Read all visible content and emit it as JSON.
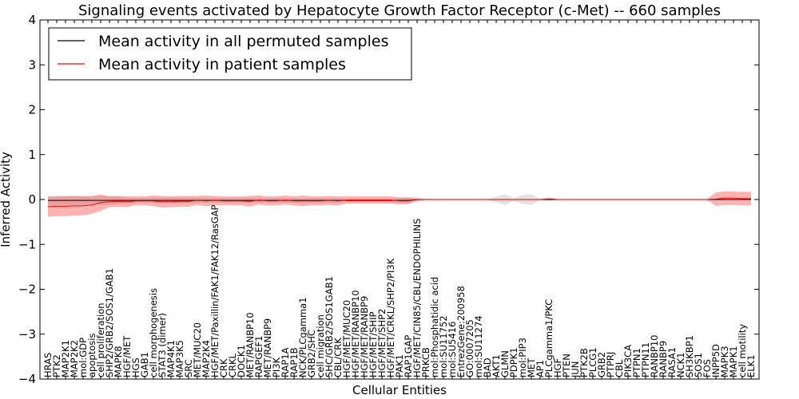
{
  "chart_data": {
    "type": "line",
    "title": "Signaling events activated by Hepatocyte Growth Factor Receptor (c-Met) -- 660 samples",
    "xlabel": "Cellular Entities",
    "ylabel": "Inferred Activity",
    "ylim": [
      -4,
      4
    ],
    "yticks": [
      -4,
      -3,
      -2,
      -1,
      0,
      1,
      2,
      3,
      4
    ],
    "grid": false,
    "legend_position": "top-left",
    "categories": [
      "HRAS",
      "PTK2",
      "MAP2K1",
      "MAP2K2",
      "mol:GDP",
      "apoptosis",
      "cell proliferation",
      "SHP2/GRB2/SOS1/GAB1",
      "MAPK8",
      "HGF/MET",
      "HGS",
      "GAB1",
      "cell morphogenesis",
      "STAT3 (dimer)",
      "MAP4K1",
      "MAP3K5",
      "SRC",
      "MET/MUC20",
      "MAP2K4",
      "HGF/MET/Paxillin/FAK1/FAK12/RasGAP",
      "CRK",
      "CRKL",
      "DOCK1",
      "MET/RANBP10",
      "RAPGEF1",
      "MET/RANBP9",
      "PI3K",
      "RAP1A",
      "RAP1B",
      "NCK/PLCgamma1",
      "GRB2/SHC",
      "cell migration",
      "SHC/GRB2/SOS1GAB1",
      "CBL/CRK",
      "HGF/MET/MUC20",
      "HGF/MET/RANBP10",
      "HGF/MET/RANBP9",
      "HGF/MET/SHIP",
      "HGF/MET/SHP2",
      "HGF/MET/CRKL/SHP2/PI3K",
      "PAK1",
      "RAP1GAP",
      "HGF/MET/CIN85/CBL/ENDOPHILINS",
      "PRKCB",
      "mol:Phosphatidic acid",
      "mol:SU11752",
      "mol:SU5416",
      "EntrezGene:200958",
      "GO:0007205",
      "mol:SU11274",
      "BAD",
      "AKT1",
      "GLMN",
      "PDPK1",
      "mol:PIP3",
      "MET",
      "AP1",
      "PLCgamma1/PKC",
      "HGF",
      "PTEN",
      "JUN",
      "PTK2B",
      "PLCG1",
      "GRB2",
      "PTPRJ",
      "CBL",
      "PIK3CA",
      "PTPN1",
      "PTPN11",
      "RANBP10",
      "RANBP9",
      "RASA1",
      "NCK1",
      "SH3KBP1",
      "SOS1",
      "FOS",
      "INPP5D",
      "MAPK3",
      "MAPK1",
      "cell motility",
      "ELK1"
    ],
    "series": [
      {
        "name": "Mean activity in all permuted samples",
        "color": "#000000",
        "values": [
          -0.02,
          -0.02,
          -0.02,
          -0.02,
          -0.02,
          -0.02,
          -0.02,
          -0.02,
          -0.02,
          -0.02,
          -0.02,
          -0.02,
          -0.02,
          -0.02,
          -0.02,
          -0.02,
          -0.02,
          -0.02,
          -0.02,
          -0.02,
          -0.02,
          -0.02,
          -0.02,
          -0.02,
          -0.02,
          -0.02,
          -0.02,
          -0.02,
          -0.02,
          -0.02,
          -0.02,
          -0.02,
          -0.02,
          -0.02,
          -0.02,
          -0.02,
          -0.02,
          -0.02,
          -0.02,
          -0.02,
          -0.02,
          -0.02,
          0,
          0,
          0,
          0,
          0,
          0,
          0,
          0,
          0,
          0,
          0,
          0,
          0,
          0,
          0,
          0,
          0,
          0,
          0,
          0,
          0,
          0,
          0,
          0,
          0,
          0,
          0,
          0,
          0,
          0,
          0,
          0,
          0,
          0,
          0,
          0,
          0,
          0,
          0
        ],
        "band": [
          0.1,
          0.1,
          0.1,
          0.1,
          0.1,
          0.08,
          0.1,
          0.1,
          0.08,
          0.06,
          0.05,
          0.05,
          0.06,
          0.06,
          0.06,
          0.06,
          0.06,
          0.06,
          0.05,
          0.05,
          0.05,
          0.05,
          0.05,
          0.05,
          0.05,
          0.05,
          0.05,
          0.05,
          0.05,
          0.05,
          0.05,
          0.05,
          0.05,
          0.05,
          0.04,
          0.04,
          0.04,
          0.04,
          0.04,
          0.04,
          0.05,
          0.08,
          0.05,
          0.02,
          0.01,
          0.01,
          0.01,
          0.01,
          0.01,
          0.01,
          0.01,
          0.06,
          0.12,
          0.03,
          0.1,
          0.12,
          0.01,
          0.01,
          0.01,
          0.01,
          0.01,
          0.01,
          0.01,
          0.01,
          0.01,
          0.01,
          0.01,
          0.01,
          0.01,
          0.01,
          0.01,
          0.01,
          0.01,
          0.01,
          0.01,
          0.01,
          0.01,
          0.01,
          0.01,
          0.01,
          0.01
        ]
      },
      {
        "name": "Mean activity in patient samples",
        "color": "#ff0000",
        "values": [
          -0.16,
          -0.15,
          -0.15,
          -0.14,
          -0.14,
          -0.12,
          -0.07,
          -0.05,
          -0.04,
          -0.05,
          -0.03,
          -0.03,
          -0.03,
          -0.05,
          -0.05,
          -0.04,
          -0.04,
          -0.02,
          -0.03,
          -0.02,
          -0.03,
          -0.03,
          -0.03,
          -0.04,
          -0.01,
          -0.03,
          -0.03,
          -0.01,
          -0.03,
          -0.03,
          -0.03,
          -0.03,
          -0.02,
          -0.03,
          -0.01,
          -0.01,
          -0.01,
          -0.01,
          -0.01,
          -0.01,
          -0.03,
          -0.03,
          0,
          0,
          0,
          0,
          0,
          0,
          0,
          0,
          0,
          0,
          0,
          0,
          0,
          0,
          0,
          0.01,
          0,
          0,
          0,
          0,
          0,
          0,
          0,
          0,
          0,
          0,
          0,
          0,
          0,
          0,
          0,
          0,
          0,
          0,
          0.01,
          0.03,
          0.03,
          0.02,
          0.02
        ],
        "band": [
          0.22,
          0.22,
          0.22,
          0.22,
          0.21,
          0.2,
          0.18,
          0.12,
          0.12,
          0.12,
          0.1,
          0.1,
          0.12,
          0.13,
          0.12,
          0.12,
          0.12,
          0.1,
          0.12,
          0.1,
          0.1,
          0.1,
          0.1,
          0.12,
          0.1,
          0.1,
          0.1,
          0.1,
          0.1,
          0.12,
          0.1,
          0.1,
          0.1,
          0.1,
          0.08,
          0.08,
          0.08,
          0.08,
          0.08,
          0.08,
          0.08,
          0.07,
          0.02,
          0.01,
          0.01,
          0.01,
          0.01,
          0.01,
          0.01,
          0.01,
          0.01,
          0.01,
          0.01,
          0.01,
          0.01,
          0.01,
          0.01,
          0.04,
          0.01,
          0.01,
          0.01,
          0.01,
          0.01,
          0.01,
          0.01,
          0.01,
          0.01,
          0.01,
          0.01,
          0.01,
          0.01,
          0.01,
          0.01,
          0.01,
          0.01,
          0.01,
          0.15,
          0.15,
          0.15,
          0.15,
          0.15
        ]
      }
    ]
  }
}
